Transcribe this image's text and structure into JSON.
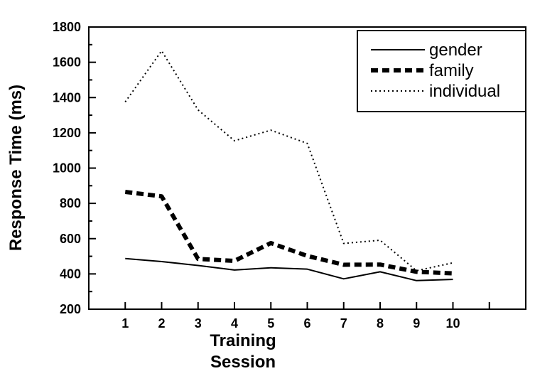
{
  "chart_data": {
    "type": "line",
    "x": [
      1,
      2,
      3,
      4,
      5,
      6,
      7,
      8,
      9,
      10
    ],
    "series": [
      {
        "name": "gender",
        "values": [
          487,
          470,
          448,
          422,
          435,
          427,
          372,
          412,
          362,
          369
        ],
        "style": "solid"
      },
      {
        "name": "family",
        "values": [
          865,
          840,
          485,
          474,
          575,
          502,
          452,
          453,
          412,
          403
        ],
        "style": "dashed"
      },
      {
        "name": "individual",
        "values": [
          1375,
          1665,
          1330,
          1155,
          1215,
          1140,
          573,
          591,
          418,
          463
        ],
        "style": "dotted"
      }
    ],
    "xlabel": [
      "Training",
      "Session"
    ],
    "ylabel": "Response Time (ms)",
    "xlim": [
      0,
      12
    ],
    "ylim": [
      200,
      1800
    ],
    "yticks": [
      200,
      400,
      600,
      800,
      1000,
      1200,
      1400,
      1600,
      1800
    ],
    "xticks": [
      1,
      2,
      3,
      4,
      5,
      6,
      7,
      8,
      9,
      10
    ],
    "grid": false,
    "legend_position": "top-right",
    "colors": {
      "line": "#000000",
      "background": "#ffffff"
    }
  }
}
